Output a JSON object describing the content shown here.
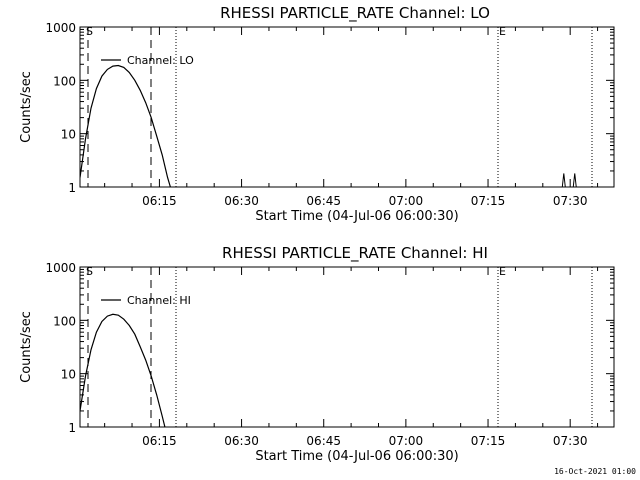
{
  "footer_stamp": "16-Oct-2021 01:00",
  "chart_data": [
    {
      "type": "line",
      "title": "RHESSI PARTICLE_RATE Channel: LO",
      "xlabel": "Start Time (04-Jul-06 06:00:30)",
      "ylabel": "Counts/sec",
      "y_scale": "log",
      "ylim": [
        1,
        1000
      ],
      "xlim": [
        "06:00:30",
        "07:38:00"
      ],
      "x_tick_labels": [
        "06:15",
        "06:30",
        "06:45",
        "07:00",
        "07:15",
        "07:30"
      ],
      "y_tick_labels": [
        "1000",
        "100",
        "10",
        "1"
      ],
      "legend": "top-left",
      "markers": {
        "s_label": "S",
        "e_label": "E"
      },
      "series": [
        {
          "name": "Channel: LO",
          "points": [
            [
              "06:00:30",
              1.5
            ],
            [
              "06:01:30",
              8
            ],
            [
              "06:02:30",
              30
            ],
            [
              "06:03:30",
              70
            ],
            [
              "06:04:30",
              120
            ],
            [
              "06:05:30",
              160
            ],
            [
              "06:06:30",
              185
            ],
            [
              "06:07:30",
              190
            ],
            [
              "06:08:30",
              175
            ],
            [
              "06:09:30",
              140
            ],
            [
              "06:10:30",
              100
            ],
            [
              "06:11:30",
              65
            ],
            [
              "06:12:30",
              38
            ],
            [
              "06:13:30",
              20
            ],
            [
              "06:14:30",
              9
            ],
            [
              "06:15:30",
              4
            ],
            [
              "06:16:30",
              1.5
            ],
            [
              "06:17:00",
              1
            ]
          ]
        }
      ],
      "spikes": [
        {
          "time": "07:28:50",
          "value": 1.8
        },
        {
          "time": "07:30:50",
          "value": 1.8
        }
      ]
    },
    {
      "type": "line",
      "title": "RHESSI PARTICLE_RATE Channel: HI",
      "xlabel": "Start Time (04-Jul-06 06:00:30)",
      "ylabel": "Counts/sec",
      "y_scale": "log",
      "ylim": [
        1,
        1000
      ],
      "xlim": [
        "06:00:30",
        "07:38:00"
      ],
      "x_tick_labels": [
        "06:15",
        "06:30",
        "06:45",
        "07:00",
        "07:15",
        "07:30"
      ],
      "y_tick_labels": [
        "1000",
        "100",
        "10",
        "1"
      ],
      "legend": "top-left",
      "markers": {
        "s_label": "S",
        "e_label": "E"
      },
      "series": [
        {
          "name": "Channel: HI",
          "points": [
            [
              "06:00:30",
              2
            ],
            [
              "06:01:30",
              9
            ],
            [
              "06:02:30",
              28
            ],
            [
              "06:03:30",
              60
            ],
            [
              "06:04:30",
              95
            ],
            [
              "06:05:30",
              120
            ],
            [
              "06:06:30",
              130
            ],
            [
              "06:07:30",
              125
            ],
            [
              "06:08:30",
              105
            ],
            [
              "06:09:30",
              80
            ],
            [
              "06:10:30",
              55
            ],
            [
              "06:11:30",
              32
            ],
            [
              "06:12:30",
              18
            ],
            [
              "06:13:30",
              9
            ],
            [
              "06:14:30",
              4
            ],
            [
              "06:15:30",
              1.6
            ],
            [
              "06:16:00",
              1
            ]
          ]
        }
      ],
      "spikes": []
    }
  ]
}
